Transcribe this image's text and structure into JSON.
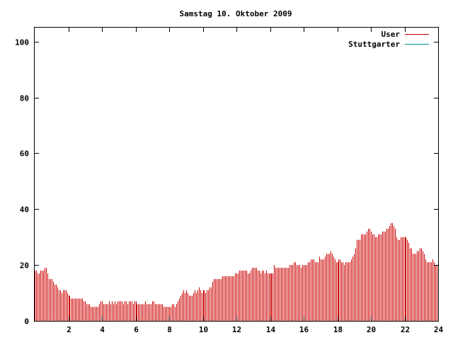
{
  "chart_data": {
    "type": "bar",
    "title": "Samstag 10. Oktober 2009",
    "xlabel": "",
    "ylabel": "",
    "xlim": [
      0,
      24
    ],
    "ylim": [
      0,
      105
    ],
    "xticks": [
      2,
      4,
      6,
      8,
      10,
      12,
      14,
      16,
      18,
      20,
      22,
      24
    ],
    "yticks": [
      0,
      20,
      40,
      60,
      80,
      100
    ],
    "legend_position": "top-right",
    "grid": false,
    "series": [
      {
        "name": "User",
        "color": "#cc0000",
        "resolution_minutes": 5,
        "values": [
          18,
          18,
          17,
          17,
          18,
          18,
          18,
          19,
          19,
          17,
          15,
          15,
          15,
          14,
          13,
          13,
          12,
          11,
          11,
          10,
          11,
          11,
          11,
          10,
          9,
          9,
          8,
          8,
          8,
          8,
          8,
          8,
          8,
          8,
          8,
          7,
          7,
          6,
          6,
          6,
          5,
          5,
          5,
          5,
          5,
          5,
          6,
          7,
          7,
          6,
          6,
          6,
          6,
          7,
          6,
          7,
          6,
          7,
          6,
          7,
          7,
          7,
          7,
          6,
          7,
          7,
          6,
          7,
          7,
          7,
          6,
          7,
          7,
          6,
          6,
          6,
          6,
          6,
          6,
          7,
          6,
          6,
          6,
          6,
          7,
          7,
          6,
          6,
          6,
          6,
          6,
          6,
          5,
          5,
          5,
          5,
          5,
          5,
          6,
          6,
          5,
          6,
          7,
          8,
          9,
          10,
          11,
          10,
          11,
          10,
          9,
          9,
          9,
          10,
          11,
          10,
          11,
          12,
          11,
          10,
          11,
          11,
          10,
          11,
          11,
          12,
          12,
          14,
          15,
          15,
          15,
          15,
          15,
          15,
          16,
          16,
          16,
          16,
          16,
          16,
          16,
          16,
          16,
          17,
          17,
          17,
          18,
          18,
          18,
          18,
          18,
          18,
          17,
          17,
          18,
          19,
          19,
          19,
          19,
          18,
          18,
          17,
          18,
          18,
          17,
          18,
          17,
          17,
          17,
          17,
          17,
          20,
          19,
          19,
          19,
          19,
          19,
          19,
          19,
          19,
          19,
          19,
          20,
          20,
          20,
          21,
          21,
          20,
          20,
          20,
          19,
          20,
          20,
          20,
          20,
          21,
          21,
          22,
          22,
          22,
          21,
          21,
          21,
          23,
          22,
          22,
          22,
          23,
          24,
          24,
          24,
          25,
          24,
          23,
          22,
          21,
          21,
          22,
          22,
          21,
          21,
          20,
          21,
          21,
          21,
          21,
          22,
          23,
          24,
          26,
          29,
          29,
          29,
          31,
          31,
          31,
          31,
          32,
          33,
          33,
          32,
          31,
          31,
          30,
          30,
          31,
          31,
          31,
          32,
          32,
          32,
          33,
          33,
          34,
          35,
          35,
          34,
          33,
          30,
          29,
          29,
          30,
          30,
          30,
          30,
          30,
          29,
          28,
          26,
          26,
          24,
          24,
          24,
          25,
          25,
          26,
          26,
          25,
          24,
          22,
          21,
          21,
          21,
          21,
          22,
          21,
          20,
          20
        ]
      },
      {
        "name": "Stuttgarter",
        "color": "#008b8b",
        "values": []
      }
    ]
  }
}
